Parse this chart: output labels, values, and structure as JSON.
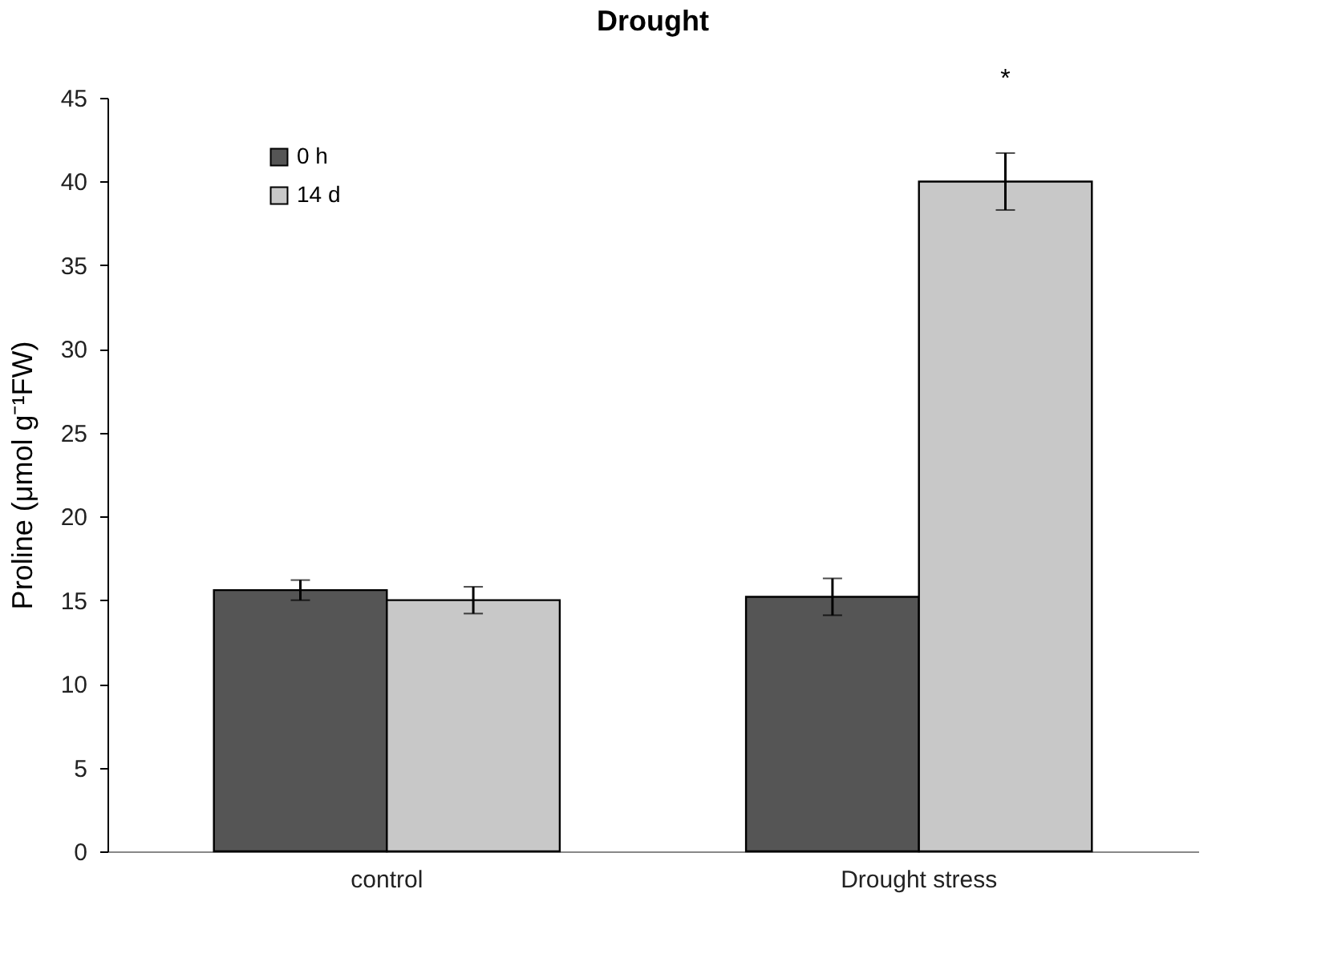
{
  "chart_data": {
    "type": "bar",
    "title": "Drought",
    "ylabel": "Proline (μmol g⁻¹FW)",
    "categories": [
      "control",
      "Drought stress"
    ],
    "series": [
      {
        "name": "0 h",
        "color": "#555555",
        "values": [
          15.6,
          15.2
        ],
        "errors": [
          0.6,
          1.1
        ]
      },
      {
        "name": "14 d",
        "color": "#c8c8c8",
        "values": [
          15.0,
          40.0
        ],
        "errors": [
          0.8,
          1.7
        ]
      }
    ],
    "ylim": [
      0,
      45
    ],
    "yticks": [
      0,
      5,
      10,
      15,
      20,
      25,
      30,
      35,
      40,
      45
    ],
    "grid": false,
    "legend": "top left",
    "annotations": [
      "*"
    ]
  }
}
